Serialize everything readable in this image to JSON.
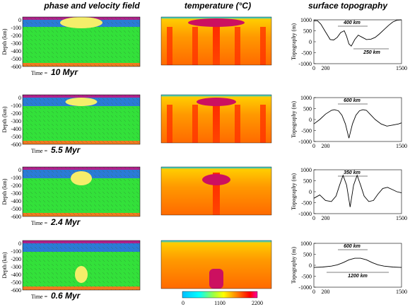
{
  "headers": {
    "phase": "phase and velocity field",
    "temperature": "temperature (°C)",
    "topography": "surface topography"
  },
  "axes": {
    "depth_label": "Depth (km)",
    "topo_label": "Topography (m)",
    "depth_ticks": [
      "0",
      "-100",
      "-200",
      "-300",
      "-400",
      "-500",
      "-600"
    ],
    "topo_ticks": [
      "1000",
      "500",
      "0",
      "-500",
      "-1000"
    ],
    "x_ticks": [
      "0",
      "200",
      "1500"
    ]
  },
  "colorbar": {
    "min": "0",
    "mid": "1100",
    "max": "2200"
  },
  "time_word": "Time =",
  "panels": [
    {
      "time": "10 Myr",
      "ann1": "400 km",
      "ann2": "250 km",
      "chart_data": {
        "type": "line",
        "xlim": [
          0,
          1500
        ],
        "ylim": [
          -1000,
          1000
        ],
        "x": [
          0,
          60,
          120,
          200,
          280,
          340,
          400,
          460,
          520,
          560,
          600,
          640,
          700,
          760,
          830,
          900,
          980,
          1050,
          1120,
          1200,
          1280,
          1350,
          1420,
          1500
        ],
        "y": [
          950,
          960,
          800,
          450,
          100,
          80,
          200,
          420,
          500,
          250,
          -100,
          -200,
          100,
          300,
          200,
          100,
          120,
          200,
          350,
          550,
          750,
          900,
          980,
          1000
        ]
      }
    },
    {
      "time": "5.5 Myr",
      "ann1": "600 km",
      "ann2": "",
      "chart_data": {
        "type": "line",
        "xlim": [
          0,
          1500
        ],
        "ylim": [
          -1000,
          1000
        ],
        "x": [
          0,
          100,
          200,
          300,
          350,
          420,
          480,
          540,
          600,
          660,
          720,
          780,
          840,
          900,
          960,
          1050,
          1150,
          1250,
          1350,
          1450,
          1500
        ],
        "y": [
          -200,
          0,
          250,
          420,
          450,
          400,
          200,
          -200,
          -850,
          -200,
          200,
          400,
          450,
          420,
          250,
          0,
          -200,
          -300,
          -250,
          -200,
          -150
        ]
      }
    },
    {
      "time": "2.4 Myr",
      "ann1": "350 km",
      "ann2": "",
      "chart_data": {
        "type": "line",
        "xlim": [
          0,
          1500
        ],
        "ylim": [
          -1000,
          1000
        ],
        "x": [
          0,
          100,
          200,
          300,
          380,
          440,
          500,
          560,
          620,
          680,
          740,
          800,
          860,
          940,
          1020,
          1100,
          1180,
          1260,
          1340,
          1420,
          1500
        ],
        "y": [
          -300,
          -150,
          -400,
          -450,
          -200,
          300,
          750,
          300,
          -700,
          300,
          750,
          300,
          -200,
          -450,
          -400,
          -100,
          150,
          200,
          100,
          0,
          -50
        ]
      }
    },
    {
      "time": "0.6 Myr",
      "ann1": "600 km",
      "ann2": "1200 km",
      "chart_data": {
        "type": "line",
        "xlim": [
          0,
          1500
        ],
        "ylim": [
          -1000,
          1000
        ],
        "x": [
          0,
          150,
          300,
          400,
          500,
          600,
          700,
          800,
          900,
          1000,
          1100,
          1200,
          1350,
          1500
        ],
        "y": [
          -100,
          -80,
          -40,
          20,
          120,
          250,
          320,
          320,
          250,
          120,
          20,
          -40,
          -80,
          -100
        ]
      }
    }
  ]
}
